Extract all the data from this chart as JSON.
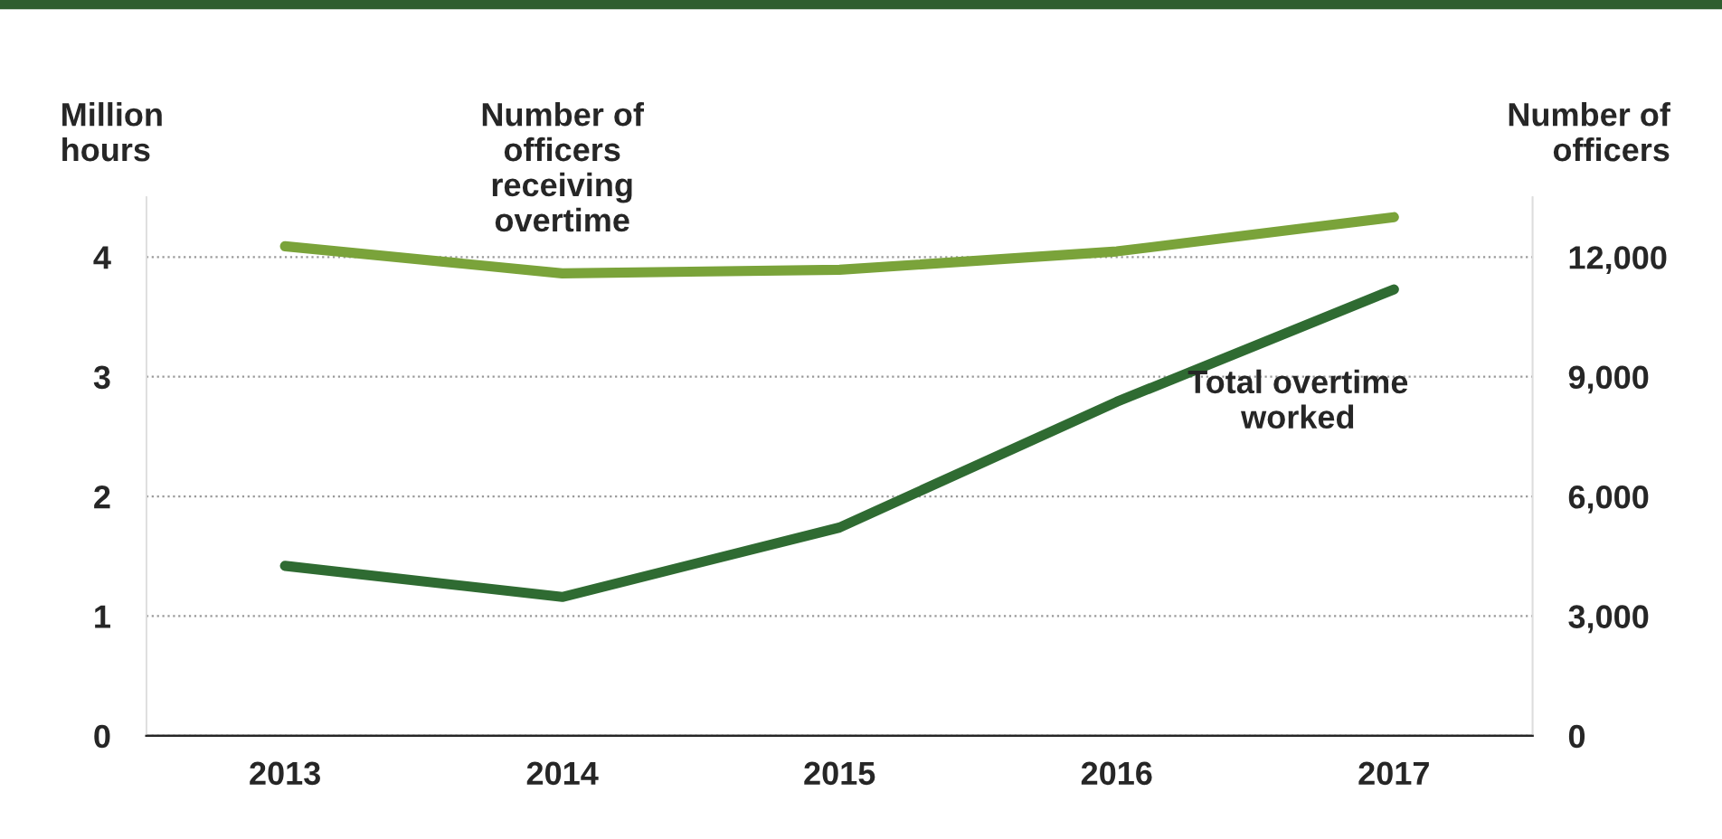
{
  "chart_data": {
    "type": "line",
    "categories": [
      "2013",
      "2014",
      "2015",
      "2016",
      "2017"
    ],
    "ylabel": "Million hours",
    "y2label": "Number of officers",
    "ylim": [
      0,
      4.5
    ],
    "yticks": [
      0,
      1,
      2,
      3,
      4
    ],
    "y2lim": [
      0,
      13500
    ],
    "y2ticks": [
      {
        "value": 0,
        "label": "0"
      },
      {
        "value": 3000,
        "label": "3,000"
      },
      {
        "value": 6000,
        "label": "6,000"
      },
      {
        "value": 9000,
        "label": "9,000"
      },
      {
        "value": 12000,
        "label": "12,000"
      }
    ],
    "grid": "y",
    "legend": false,
    "marker": "none",
    "line_style": "solid",
    "series": [
      {
        "name": "Number of officers receiving overtime",
        "color": "#7aa33a",
        "axis": "y2",
        "values": [
          12270,
          11590,
          11680,
          12140,
          13000
        ]
      },
      {
        "name": "Total overtime worked",
        "color": "#2f6b32",
        "values": [
          1.42,
          1.16,
          1.74,
          2.79,
          3.73
        ]
      }
    ]
  }
}
